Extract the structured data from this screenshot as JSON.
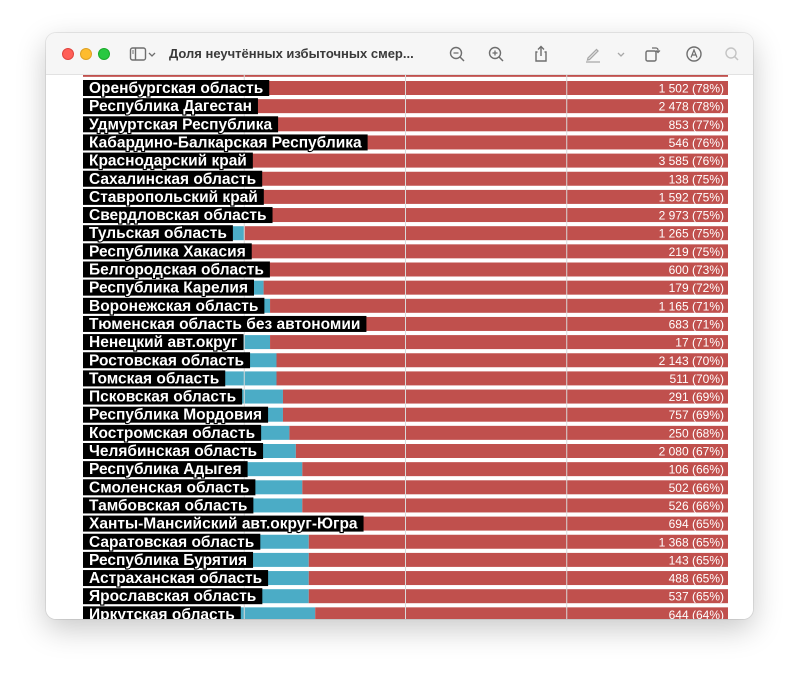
{
  "window": {
    "title": "Доля неучтённых избыточных смер...",
    "toolbar_icons": [
      "sidebar-toggle-icon",
      "chevron-down-icon",
      "zoom-out-icon",
      "zoom-in-icon",
      "share-icon",
      "markup-pen-icon",
      "chevron-down-icon",
      "rotate-icon",
      "annotate-circle-icon",
      "search-icon"
    ]
  },
  "colors": {
    "main_bar": "#c0504d",
    "left_bar": "#4bacc6",
    "label_bg": "#000000",
    "value_text": "#ffffff"
  },
  "chart_data": {
    "type": "bar",
    "orientation": "horizontal",
    "stacked": true,
    "categories": [
      "Оренбургская область",
      "Республика Дагестан",
      "Удмуртская Республика",
      "Кабардино-Балкарская Республика",
      "Краснодарский край",
      "Сахалинская область",
      "Ставропольский край",
      "Свердловская область",
      "Тульская область",
      "Республика Хакасия",
      "Белгородская область",
      "Республика Карелия",
      "Воронежская область",
      "Тюменская область без автономии",
      "Ненецкий авт.округ",
      "Ростовская область",
      "Томская область",
      "Псковская область",
      "Республика Мордовия",
      "Костромская область",
      "Челябинская область",
      "Республика Адыгея",
      "Смоленская область",
      "Тамбовская область",
      "Ханты-Мансийский авт.округ-Югра",
      "Саратовская область",
      "Республика Бурятия",
      "Астраханская область",
      "Ярославская область",
      "Иркутская область"
    ],
    "value_labels": [
      "1 502 (78%)",
      "2 478 (78%)",
      "853 (77%)",
      "546 (76%)",
      "3 585 (76%)",
      "138 (75%)",
      "1 592 (75%)",
      "2 973 (75%)",
      "1 265 (75%)",
      "219 (75%)",
      "600 (73%)",
      "179 (72%)",
      "1 165 (71%)",
      "683 (71%)",
      "17 (71%)",
      "2 143 (70%)",
      "511 (70%)",
      "291 (69%)",
      "757 (69%)",
      "250 (68%)",
      "2 080 (67%)",
      "106 (66%)",
      "502 (66%)",
      "526 (66%)",
      "694 (65%)",
      "1 368 (65%)",
      "143 (65%)",
      "488 (65%)",
      "537 (65%)",
      "644 (64%)"
    ],
    "series": [
      {
        "values": [
          22,
          22,
          23,
          24,
          24,
          25,
          25,
          25,
          25,
          25,
          27,
          28,
          29,
          29,
          29,
          30,
          30,
          31,
          31,
          32,
          33,
          34,
          34,
          34,
          35,
          35,
          35,
          35,
          35,
          36
        ]
      },
      {
        "values": [
          78,
          78,
          77,
          76,
          76,
          75,
          75,
          75,
          75,
          75,
          73,
          72,
          71,
          71,
          71,
          70,
          70,
          69,
          69,
          68,
          67,
          66,
          66,
          66,
          65,
          65,
          65,
          65,
          65,
          64
        ]
      }
    ],
    "xlim": [
      0,
      100
    ],
    "grid": true,
    "gridlines": [
      25,
      50,
      75
    ],
    "legend": "none",
    "title": "",
    "xlabel": "",
    "ylabel": ""
  }
}
